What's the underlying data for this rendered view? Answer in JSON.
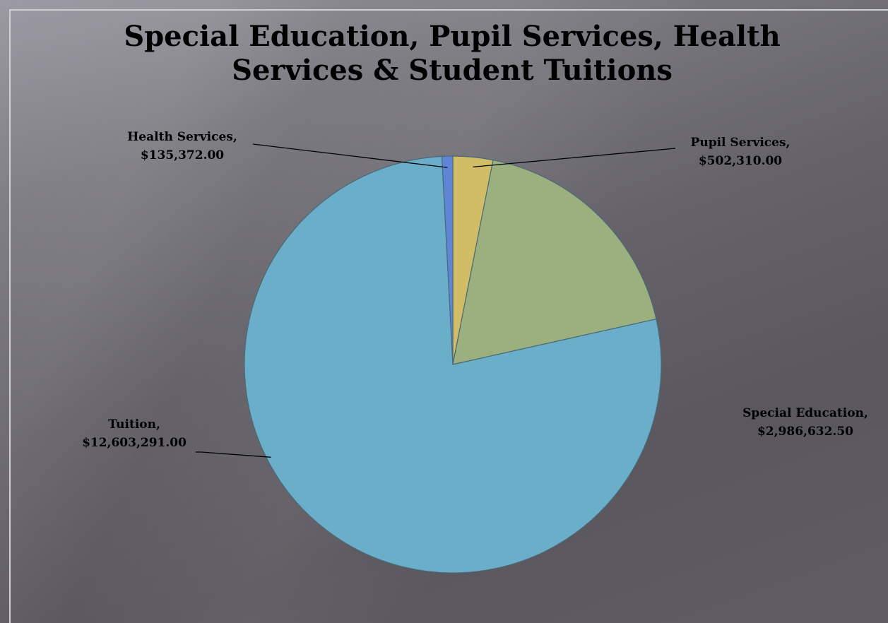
{
  "chart_data": {
    "type": "pie",
    "title": "Special Education, Pupil Services, Health Services & Student Tuitions",
    "slices": [
      {
        "name": "Pupil Services",
        "value": 502310.0,
        "display_value": "$502,310.00",
        "color": "#d0bd66"
      },
      {
        "name": "Special Education",
        "value": 2986632.5,
        "display_value": "$2,986,632.50",
        "color": "#9bb07e"
      },
      {
        "name": "Tuition",
        "value": 12603291.0,
        "display_value": "$12,603,291.00",
        "color": "#6aaec9"
      },
      {
        "name": "Health Services",
        "value": 135372.0,
        "display_value": "$135,372.00",
        "color": "#5f86d6"
      }
    ],
    "labels": [
      {
        "line1": "Pupil Services,",
        "line2": "$502,310.00"
      },
      {
        "line1": "Special Education,",
        "line2": "$2,986,632.50"
      },
      {
        "line1": "Tuition,",
        "line2": "$12,603,291.00"
      },
      {
        "line1": "Health Services,",
        "line2": "$135,372.00"
      }
    ],
    "start_angle_deg": 0,
    "direction": "clockwise",
    "slice_border_color": "#4a6a78"
  }
}
